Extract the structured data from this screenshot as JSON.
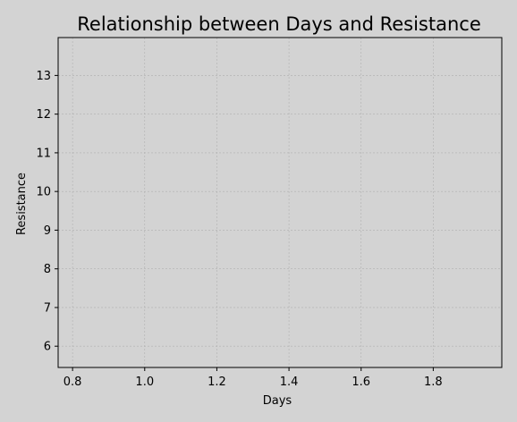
{
  "chart_data": {
    "type": "scatter",
    "title": "Relationship between Days and Resistance",
    "xlabel": "Days",
    "ylabel": "Resistance",
    "xlim": [
      0.76,
      1.99
    ],
    "ylim": [
      5.45,
      13.98
    ],
    "xticks": [
      0.8,
      1.0,
      1.2,
      1.4,
      1.6,
      1.8
    ],
    "xtick_labels": [
      "0.8",
      "1.0",
      "1.2",
      "1.4",
      "1.6",
      "1.8"
    ],
    "yticks": [
      6,
      7,
      8,
      9,
      10,
      11,
      12,
      13
    ],
    "ytick_labels": [
      "6",
      "7",
      "8",
      "9",
      "10",
      "11",
      "12",
      "13"
    ],
    "grid": true,
    "series": [],
    "colors": {
      "background": "#d3d3d3",
      "grid": "#b0b0b0",
      "axes": "#000000"
    }
  }
}
